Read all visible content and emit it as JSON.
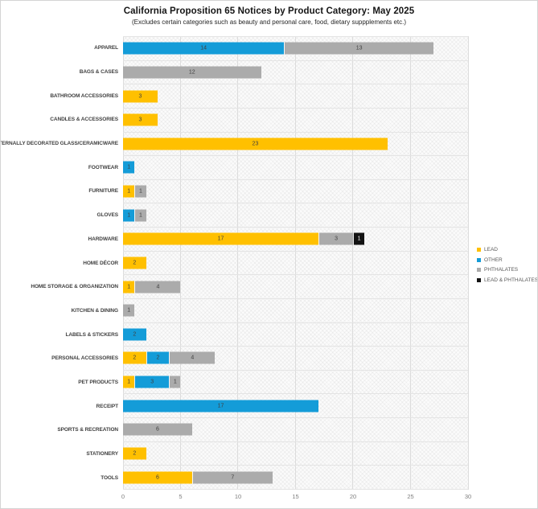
{
  "title": "California Proposition 65 Notices by Product Category: May 2025",
  "subtitle": "(Excludes certain categories such as beauty and personal care, food, dietary suppplements etc.)",
  "colors": {
    "lead": "#FFC000",
    "other": "#149CD8",
    "phthalates": "#ABABAB",
    "lead_and_phthalates": "#131313",
    "gridline": "#dcdcdc",
    "segment_label": "#3f3f3f"
  },
  "legend": [
    {
      "label": "LEAD",
      "color": "#FFC000"
    },
    {
      "label": "OTHER",
      "color": "#149CD8"
    },
    {
      "label": "PHTHALATES",
      "color": "#ABABAB"
    },
    {
      "label": "LEAD & PHTHALATES",
      "color": "#131313"
    }
  ],
  "chart_data": {
    "type": "bar",
    "orientation": "horizontal",
    "stacked": true,
    "title": "California Proposition 65 Notices by Product Category: May 2025",
    "subtitle": "(Excludes certain categories such as beauty and personal care, food, dietary suppplements etc.)",
    "xlabel": "",
    "ylabel": "",
    "xlim": [
      0,
      30
    ],
    "x_ticks": [
      0,
      5,
      10,
      15,
      20,
      25,
      30
    ],
    "grid": true,
    "legend_position": "right",
    "categories": [
      "APPAREL",
      "BAGS & CASES",
      "BATHROOM ACCESSORIES",
      "CANDLES & ACCESSORIES",
      "EXTERNALLY DECORATED GLASS/CERAMICWARE",
      "FOOTWEAR",
      "FURNITURE",
      "GLOVES",
      "HARDWARE",
      "HOME DÉCOR",
      "HOME STORAGE & ORGANIZATION",
      "KITCHEN & DINING",
      "LABELS & STICKERS",
      "PERSONAL ACCESSORIES",
      "PET PRODUCTS",
      "RECEIPT",
      "SPORTS & RECREATION",
      "STATIONERY",
      "TOOLS"
    ],
    "series": [
      {
        "name": "LEAD",
        "color": "#FFC000",
        "label_color": "#3f3f3f",
        "values": [
          0,
          0,
          3,
          3,
          23,
          0,
          1,
          0,
          17,
          2,
          1,
          0,
          0,
          2,
          1,
          0,
          0,
          2,
          6
        ]
      },
      {
        "name": "OTHER",
        "color": "#149CD8",
        "label_color": "#3f3f3f",
        "values": [
          14,
          0,
          0,
          0,
          0,
          1,
          0,
          1,
          0,
          0,
          0,
          0,
          2,
          2,
          3,
          17,
          0,
          0,
          0
        ]
      },
      {
        "name": "PHTHALATES",
        "color": "#ABABAB",
        "label_color": "#3f3f3f",
        "values": [
          13,
          12,
          0,
          0,
          0,
          0,
          1,
          1,
          3,
          0,
          4,
          1,
          0,
          4,
          1,
          0,
          6,
          0,
          7
        ]
      },
      {
        "name": "LEAD & PHTHALATES",
        "color": "#131313",
        "label_color": "#ffffff",
        "values": [
          0,
          0,
          0,
          0,
          0,
          0,
          0,
          0,
          1,
          0,
          0,
          0,
          0,
          0,
          0,
          0,
          0,
          0,
          0
        ]
      }
    ]
  }
}
